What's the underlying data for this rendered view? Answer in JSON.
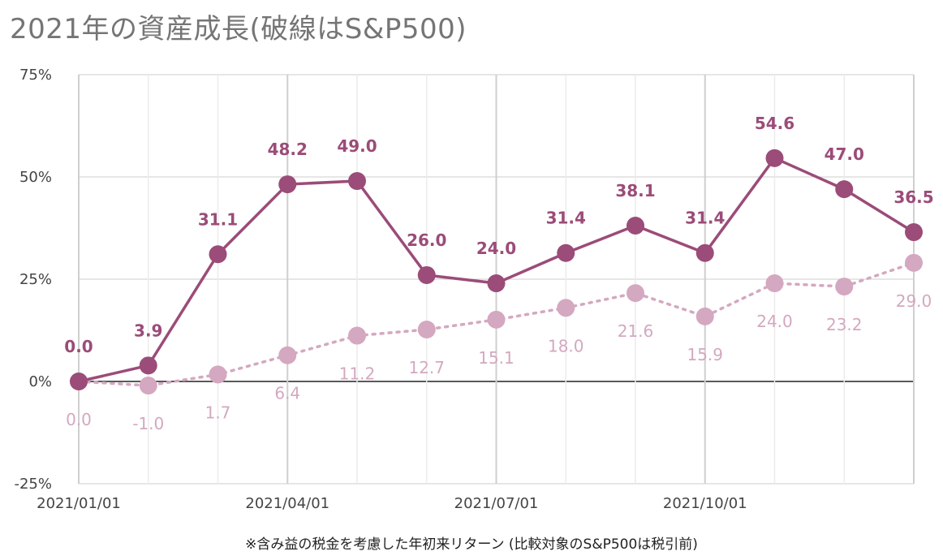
{
  "title": "2021年の資産成長(破線はS&P500)",
  "footnote": "※含み益の税金を考慮した年初来リターン (比較対象のS&P500は税引前)",
  "colors": {
    "portfolio": "#9b4c78",
    "sp500": "#d4a8c0",
    "grid": "#cccccc",
    "zero": "#222222",
    "axis_text": "#444444"
  },
  "chart_data": {
    "type": "line",
    "title": "2021年の資産成長(破線はS&P500)",
    "xlabel": "",
    "ylabel": "",
    "ylim": [
      -25,
      75
    ],
    "y_ticks": [
      "-25%",
      "0%",
      "25%",
      "50%",
      "75%"
    ],
    "x_tick_labels": [
      "2021/01/01",
      "2021/04/01",
      "2021/07/01",
      "2021/10/01"
    ],
    "x_tick_indices": [
      0,
      3,
      6,
      9
    ],
    "grid": true,
    "legend": "none",
    "series": [
      {
        "values": [
          0.0,
          3.9,
          31.1,
          48.2,
          49.0,
          26.0,
          24.0,
          31.4,
          38.1,
          31.4,
          54.6,
          47.0,
          36.5
        ],
        "labels": [
          "0.0",
          "3.9",
          "31.1",
          "48.2",
          "49.0",
          "26.0",
          "24.0",
          "31.4",
          "38.1",
          "31.4",
          "54.6",
          "47.0",
          "36.5"
        ],
        "style": "solid"
      },
      {
        "name": "S&P500",
        "values": [
          0.0,
          -1.0,
          1.7,
          6.4,
          11.2,
          12.7,
          15.1,
          18.0,
          21.6,
          15.9,
          24.0,
          23.2,
          29.0
        ],
        "labels": [
          "0.0",
          "-1.0",
          "1.7",
          "6.4",
          "11.2",
          "12.7",
          "15.1",
          "18.0",
          "21.6",
          "15.9",
          "24.0",
          "23.2",
          "29.0"
        ],
        "style": "dotted"
      }
    ]
  }
}
